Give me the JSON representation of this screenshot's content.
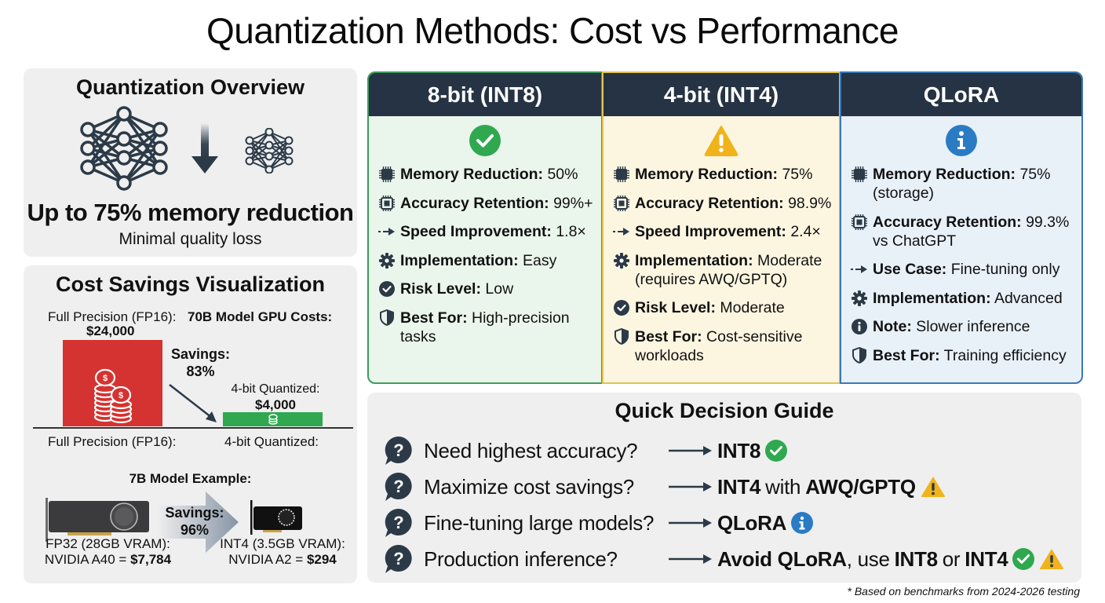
{
  "title": "Quantization Methods: Cost vs Performance",
  "overview": {
    "heading": "Quantization Overview",
    "headline": "Up to 75% memory reduction",
    "subline": "Minimal quality loss",
    "icons": [
      "neural-network-large-icon",
      "arrow-down-icon",
      "neural-network-small-icon"
    ]
  },
  "cost": {
    "heading": "Cost Savings Visualization",
    "fp_top_label": "Full Precision (FP16):",
    "chart_title": "70B Model GPU Costs:",
    "fp_value": "$24,000",
    "savings_label": "Savings:",
    "savings_value": "83%",
    "q4_label": "4-bit Quantized:",
    "q4_value": "$4,000",
    "fp_bottom_label": "Full Precision (FP16):",
    "q4_bottom_label": "4-bit Quantized:",
    "example_title": "7B Model Example:",
    "example_savings_label": "Savings:",
    "example_savings_value": "96%",
    "fp32_line1": "FP32 (28GB VRAM):",
    "fp32_line2_prefix": "NVIDIA A40 = ",
    "fp32_price": "$7,784",
    "int4_line1": "INT4 (3.5GB VRAM):",
    "int4_line2_prefix": "NVIDIA A2 = ",
    "int4_price": "$294"
  },
  "chart_data": {
    "type": "bar",
    "title": "70B Model GPU Costs",
    "categories": [
      "Full Precision (FP16)",
      "4-bit Quantized"
    ],
    "values": [
      24000,
      4000
    ],
    "colors": [
      "#d43331",
      "#2fa84f"
    ],
    "annotations": [
      "Savings: 83%"
    ],
    "xlabel": "",
    "ylabel": "",
    "grid": false
  },
  "cards": [
    {
      "title": "8-bit (INT8)",
      "status_icon": "check-circle-icon",
      "status_color": "#2fa84f",
      "rows": [
        {
          "icon": "chip-icon",
          "label": "Memory Reduction:",
          "value": "50%"
        },
        {
          "icon": "processor-icon",
          "label": "Accuracy Retention:",
          "value": "99%+"
        },
        {
          "icon": "dashed-arrow-icon",
          "label": "Speed Improvement:",
          "value": "1.8×"
        },
        {
          "icon": "gear-icon",
          "label": "Implementation:",
          "value": "Easy"
        },
        {
          "icon": "check-badge-icon",
          "label": "Risk Level:",
          "value": "Low"
        },
        {
          "icon": "shield-icon",
          "label": "Best For:",
          "value": "High-precision tasks"
        }
      ]
    },
    {
      "title": "4-bit (INT4)",
      "status_icon": "warning-icon",
      "status_color": "#f0b31a",
      "rows": [
        {
          "icon": "chip-icon",
          "label": "Memory Reduction:",
          "value": "75%"
        },
        {
          "icon": "processor-icon",
          "label": "Accuracy Retention:",
          "value": "98.9%"
        },
        {
          "icon": "dashed-arrow-icon",
          "label": "Speed Improvement:",
          "value": "2.4×"
        },
        {
          "icon": "gear-icon",
          "label": "Implementation:",
          "value": "Moderate (requires AWQ/GPTQ)"
        },
        {
          "icon": "check-badge-icon",
          "label": "Risk Level:",
          "value": "Moderate"
        },
        {
          "icon": "shield-icon",
          "label": "Best For:",
          "value": "Cost-sensitive workloads"
        }
      ]
    },
    {
      "title": "QLoRA",
      "status_icon": "info-icon",
      "status_color": "#2a7bc4",
      "rows": [
        {
          "icon": "chip-icon",
          "label": "Memory Reduction:",
          "value": "75% (storage)"
        },
        {
          "icon": "processor-icon",
          "label": "Accuracy Retention:",
          "value": "99.3% vs ChatGPT"
        },
        {
          "icon": "dashed-arrow-icon",
          "label": "Use Case:",
          "value": "Fine-tuning only"
        },
        {
          "icon": "gear-icon",
          "label": "Implementation:",
          "value": "Advanced"
        },
        {
          "icon": "info-small-icon",
          "label": "Note:",
          "value": "Slower inference"
        },
        {
          "icon": "shield-icon",
          "label": "Best For:",
          "value": "Training efficiency"
        }
      ]
    }
  ],
  "guide": {
    "heading": "Quick Decision Guide",
    "rows": [
      {
        "question": "Need highest accuracy?",
        "a1": "INT8",
        "a2": "",
        "a3": "",
        "a4": "",
        "a5": "",
        "icons": [
          "check"
        ]
      },
      {
        "question": "Maximize cost savings?",
        "a1": "INT4",
        "a2": "with",
        "a3": "AWQ/GPTQ",
        "a4": "",
        "a5": "",
        "icons": [
          "warn"
        ]
      },
      {
        "question": "Fine-tuning large models?",
        "a1": "QLoRA",
        "a2": "",
        "a3": "",
        "a4": "",
        "a5": "",
        "icons": [
          "info"
        ]
      },
      {
        "question": "Production inference?",
        "a1": "Avoid QLoRA",
        "a2": ", use",
        "a3": "INT8",
        "a4": "or",
        "a5": "INT4",
        "icons": [
          "check",
          "warn"
        ]
      }
    ]
  },
  "footnote": "* Based on benchmarks from 2024-2026 testing",
  "colors": {
    "header_dark": "#253344",
    "green": "#2fa84f",
    "yellow": "#f0b31a",
    "blue": "#2a7bc4",
    "red": "#d43331",
    "icon_dark": "#2c3a48"
  }
}
